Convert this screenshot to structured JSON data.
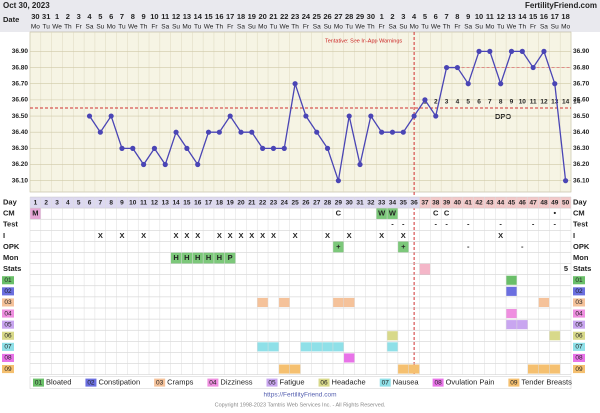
{
  "header": {
    "date": "Oct 30, 2023",
    "site": "FertilityFriend.com",
    "date_label": "Date"
  },
  "dates": [
    30,
    31,
    1,
    2,
    3,
    4,
    5,
    6,
    7,
    8,
    9,
    10,
    11,
    12,
    13,
    14,
    15,
    16,
    17,
    18,
    19,
    20,
    21,
    22,
    23,
    24,
    25,
    26,
    27,
    28,
    29,
    30,
    1,
    2,
    3,
    4,
    5,
    6,
    7,
    8,
    9,
    10,
    11,
    12,
    13,
    14,
    15,
    16,
    17,
    18
  ],
  "weekdays": [
    "Mo",
    "Tu",
    "We",
    "Th",
    "Fr",
    "Sa",
    "Su",
    "Mo",
    "Tu",
    "We",
    "Th",
    "Fr",
    "Sa",
    "Su",
    "Mo",
    "Tu",
    "We",
    "Th",
    "Fr",
    "Sa",
    "Su",
    "Mo",
    "Tu",
    "We",
    "Th",
    "Fr",
    "Sa",
    "Su",
    "Mo",
    "Tu",
    "We",
    "Th",
    "Fr",
    "Sa",
    "Su",
    "Mo",
    "Tu",
    "We",
    "Th",
    "Fr",
    "Sa",
    "Su",
    "Mo",
    "Tu",
    "We",
    "Th",
    "Fr",
    "Sa",
    "Su",
    "Mo"
  ],
  "chart_data": {
    "type": "line",
    "x": [
      1,
      2,
      3,
      4,
      5,
      6,
      7,
      8,
      9,
      10,
      11,
      12,
      13,
      14,
      15,
      16,
      17,
      18,
      19,
      20,
      21,
      22,
      23,
      24,
      25,
      26,
      27,
      28,
      29,
      30,
      31,
      32,
      33,
      34,
      35,
      36,
      37,
      38,
      39,
      40,
      41,
      42,
      43,
      44,
      45,
      46,
      47,
      48,
      49,
      50
    ],
    "values": [
      null,
      null,
      null,
      null,
      null,
      36.5,
      36.4,
      36.5,
      36.3,
      36.3,
      36.2,
      36.3,
      36.2,
      36.4,
      36.3,
      36.2,
      36.4,
      36.4,
      36.5,
      36.4,
      36.4,
      36.3,
      36.3,
      36.3,
      36.7,
      36.5,
      36.4,
      36.3,
      36.1,
      36.5,
      36.2,
      36.5,
      36.4,
      36.4,
      36.4,
      36.5,
      36.6,
      36.5,
      36.8,
      36.8,
      36.7,
      36.9,
      36.9,
      36.7,
      36.9,
      36.9,
      36.8,
      36.9,
      36.7,
      36.1
    ],
    "color": "#4a45b5",
    "xlim": [
      1,
      50
    ],
    "ylim": [
      36.03,
      37.02
    ],
    "yticks": [
      {
        "value": 36.1,
        "label": "36.10"
      },
      {
        "value": 36.2,
        "label": "36.20"
      },
      {
        "value": 36.3,
        "label": "36.30"
      },
      {
        "value": 36.4,
        "label": "36.40"
      },
      {
        "value": 36.5,
        "label": "36.50"
      },
      {
        "value": 36.6,
        "label": "36.60"
      },
      {
        "value": 36.7,
        "label": "36.70"
      },
      {
        "value": 36.8,
        "label": "36.80"
      },
      {
        "value": 36.9,
        "label": "36.90"
      }
    ],
    "grid": true,
    "coverline": 36.55,
    "ovulation_day": 36,
    "upper_line": {
      "value": 36.8,
      "from_day": 39
    },
    "annotation": "Tentative: See In-App Warnings",
    "dpo": {
      "label": "DPO",
      "start_day": 37,
      "values": [
        1,
        2,
        3,
        4,
        5,
        6,
        7,
        8,
        9,
        10,
        11,
        12,
        13,
        14
      ]
    }
  },
  "day_label": "Day",
  "rows": [
    {
      "label": "CM",
      "entries": [
        {
          "day": 1,
          "text": "M",
          "color": "#e6a6d6"
        },
        {
          "day": 29,
          "text": "C"
        },
        {
          "day": 33,
          "text": "W",
          "color": "#7cc87a"
        },
        {
          "day": 34,
          "text": "W",
          "color": "#7cc87a"
        },
        {
          "day": 38,
          "text": "C"
        },
        {
          "day": 39,
          "text": "C"
        },
        {
          "day": 49,
          "text": "•"
        }
      ]
    },
    {
      "label": "Test",
      "entries": [
        {
          "day": 34,
          "text": "-"
        },
        {
          "day": 35,
          "text": "-"
        },
        {
          "day": 38,
          "text": "-"
        },
        {
          "day": 39,
          "text": "-"
        },
        {
          "day": 41,
          "text": "-"
        },
        {
          "day": 44,
          "text": "-"
        },
        {
          "day": 47,
          "text": "-"
        },
        {
          "day": 49,
          "text": "-"
        }
      ]
    },
    {
      "label": "I",
      "entries": [
        {
          "day": 7,
          "text": "X"
        },
        {
          "day": 9,
          "text": "X"
        },
        {
          "day": 11,
          "text": "X"
        },
        {
          "day": 14,
          "text": "X"
        },
        {
          "day": 15,
          "text": "X"
        },
        {
          "day": 16,
          "text": "X"
        },
        {
          "day": 18,
          "text": "X"
        },
        {
          "day": 19,
          "text": "X"
        },
        {
          "day": 20,
          "text": "X"
        },
        {
          "day": 21,
          "text": "X"
        },
        {
          "day": 22,
          "text": "X"
        },
        {
          "day": 23,
          "text": "X"
        },
        {
          "day": 25,
          "text": "X"
        },
        {
          "day": 28,
          "text": "X"
        },
        {
          "day": 30,
          "text": "X"
        },
        {
          "day": 33,
          "text": "X"
        },
        {
          "day": 35,
          "text": "X"
        },
        {
          "day": 44,
          "text": "X"
        }
      ]
    },
    {
      "label": "OPK",
      "entries": [
        {
          "day": 29,
          "text": "+",
          "color": "#7cc87a"
        },
        {
          "day": 35,
          "text": "+",
          "color": "#7cc87a"
        },
        {
          "day": 41,
          "text": "-"
        },
        {
          "day": 46,
          "text": "-"
        }
      ]
    },
    {
      "label": "Mon",
      "entries": [
        {
          "day": 14,
          "text": "H",
          "color": "#7cc87a"
        },
        {
          "day": 15,
          "text": "H",
          "color": "#7cc87a"
        },
        {
          "day": 16,
          "text": "H",
          "color": "#7cc87a"
        },
        {
          "day": 17,
          "text": "H",
          "color": "#7cc87a"
        },
        {
          "day": 18,
          "text": "H",
          "color": "#7cc87a"
        },
        {
          "day": 19,
          "text": "P",
          "color": "#7cc87a"
        }
      ]
    },
    {
      "label": "Stats",
      "right": 5,
      "entries": [
        {
          "day": 37,
          "color": "#f4b6c8"
        }
      ]
    }
  ],
  "symptoms": [
    {
      "code": "01",
      "name": "Bloated",
      "color": "#6abf69",
      "days": [
        45
      ]
    },
    {
      "code": "02",
      "name": "Constipation",
      "color": "#6b6fe0",
      "days": [
        45
      ]
    },
    {
      "code": "03",
      "name": "Cramps",
      "color": "#f5c29a",
      "days": [
        22,
        24,
        29,
        30,
        48
      ]
    },
    {
      "code": "04",
      "name": "Dizziness",
      "color": "#ef8fe0",
      "days": [
        45
      ]
    },
    {
      "code": "05",
      "name": "Fatigue",
      "color": "#c9a6f0",
      "days": [
        45,
        46
      ]
    },
    {
      "code": "06",
      "name": "Headache",
      "color": "#d8d98a",
      "days": [
        34,
        49
      ]
    },
    {
      "code": "07",
      "name": "Nausea",
      "color": "#8fe0e8",
      "days": [
        22,
        23,
        26,
        27,
        28,
        29,
        34
      ]
    },
    {
      "code": "08",
      "name": "Ovulation Pain",
      "color": "#e873e8",
      "days": [
        30
      ]
    },
    {
      "code": "09",
      "name": "Tender Breasts",
      "color": "#f5c070",
      "days": [
        24,
        25,
        35,
        36,
        47,
        48,
        49
      ]
    }
  ],
  "footer": {
    "url": "https://FertilityFriend.com",
    "copyright": "Copyright 1998-2023 Tamtris Web Services Inc. - All Rights Reserved."
  }
}
